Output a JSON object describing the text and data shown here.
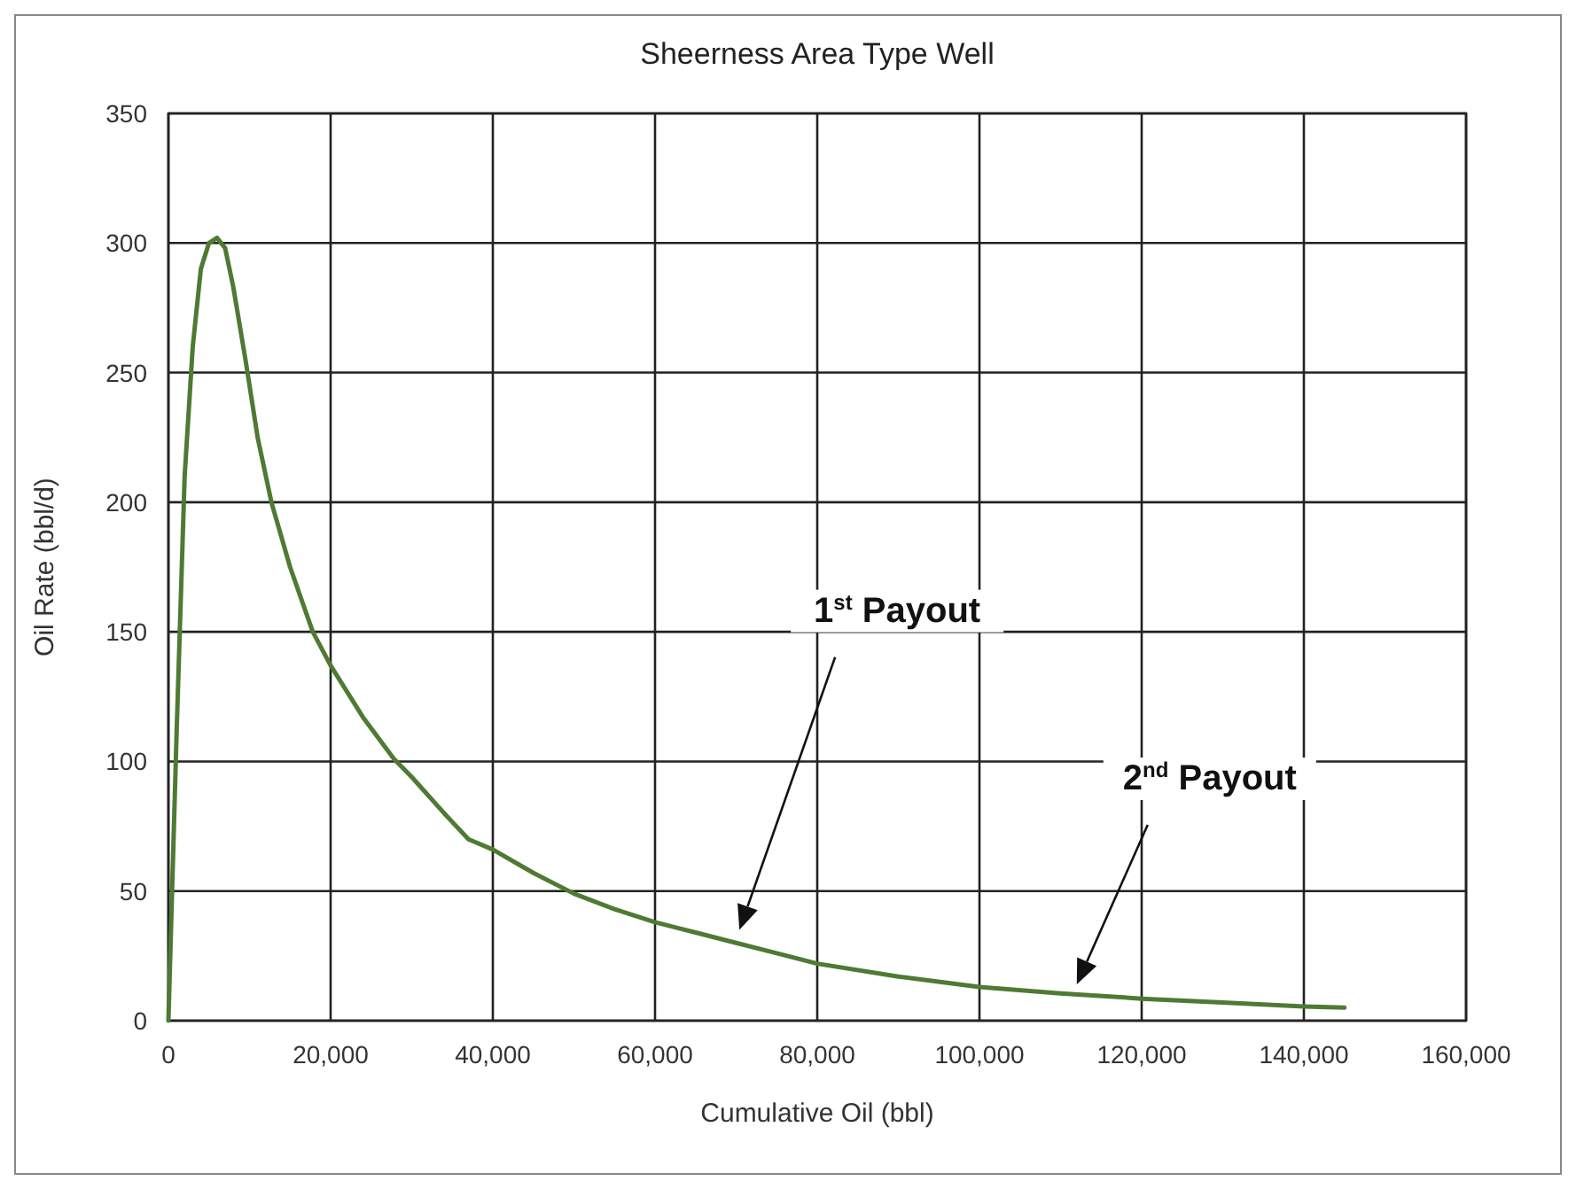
{
  "chart_data": {
    "type": "line",
    "title": "Sheerness Area Type Well",
    "xlabel": "Cumulative Oil (bbl)",
    "ylabel": "Oil Rate (bbl/d)",
    "x": [
      0,
      1000,
      2000,
      3000,
      4000,
      5000,
      6000,
      7000,
      8000,
      9500,
      11000,
      12700,
      15000,
      17800,
      20000,
      24000,
      27800,
      30000,
      34000,
      37000,
      40000,
      45000,
      50000,
      55000,
      60000,
      65000,
      70000,
      75000,
      80000,
      90000,
      100000,
      110000,
      120000,
      130000,
      140000,
      145000
    ],
    "series": [
      {
        "color": "#4e7a33",
        "values": [
          0,
          110,
          210,
          260,
          290,
          300,
          302,
          298,
          283,
          255,
          225,
          200,
          175,
          150,
          137,
          117,
          101,
          94,
          80,
          70,
          66,
          57,
          49,
          43,
          38,
          34,
          30,
          26,
          22,
          17,
          13,
          10.5,
          8.5,
          7,
          5.5,
          5
        ]
      }
    ],
    "xlim": [
      0,
      160000
    ],
    "xticks": [
      {
        "value": 0,
        "label": "0"
      },
      {
        "value": 20000,
        "label": "20,000"
      },
      {
        "value": 40000,
        "label": "40,000"
      },
      {
        "value": 60000,
        "label": "60,000"
      },
      {
        "value": 80000,
        "label": "80,000"
      },
      {
        "value": 100000,
        "label": "100,000"
      },
      {
        "value": 120000,
        "label": "120,000"
      },
      {
        "value": 140000,
        "label": "140,000"
      },
      {
        "value": 160000,
        "label": "160,000"
      }
    ],
    "ylim": [
      0,
      350
    ],
    "yticks": [
      0,
      50,
      100,
      150,
      200,
      250,
      300,
      350
    ],
    "grid": true,
    "marker": "none",
    "line_style": "solid",
    "annotations": [
      "1$^{st}$ Payout",
      "2$^{nd}$ Payout"
    ]
  }
}
